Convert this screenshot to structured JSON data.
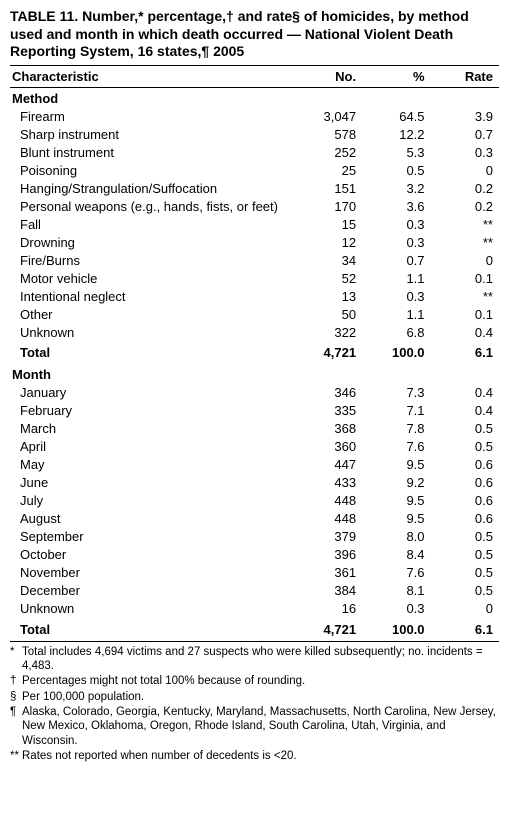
{
  "title": "TABLE 11. Number,* percentage,† and rate§ of homicides, by method used and month in which death occurred — National Violent Death Reporting System, 16 states,¶ 2005",
  "headers": {
    "characteristic": "Characteristic",
    "no": "No.",
    "pct": "%",
    "rate": "Rate"
  },
  "sections": [
    {
      "label": "Method",
      "rows": [
        {
          "label": "Firearm",
          "no": "3,047",
          "pct": "64.5",
          "rate": "3.9"
        },
        {
          "label": "Sharp instrument",
          "no": "578",
          "pct": "12.2",
          "rate": "0.7"
        },
        {
          "label": "Blunt instrument",
          "no": "252",
          "pct": "5.3",
          "rate": "0.3"
        },
        {
          "label": "Poisoning",
          "no": "25",
          "pct": "0.5",
          "rate": "0"
        },
        {
          "label": "Hanging/Strangulation/Suffocation",
          "no": "151",
          "pct": "3.2",
          "rate": "0.2"
        },
        {
          "label": "Personal weapons (e.g., hands, fists, or feet)",
          "no": "170",
          "pct": "3.6",
          "rate": "0.2"
        },
        {
          "label": "Fall",
          "no": "15",
          "pct": "0.3",
          "rate": "**"
        },
        {
          "label": "Drowning",
          "no": "12",
          "pct": "0.3",
          "rate": "**"
        },
        {
          "label": "Fire/Burns",
          "no": "34",
          "pct": "0.7",
          "rate": "0"
        },
        {
          "label": "Motor vehicle",
          "no": "52",
          "pct": "1.1",
          "rate": "0.1"
        },
        {
          "label": "Intentional neglect",
          "no": "13",
          "pct": "0.3",
          "rate": "**"
        },
        {
          "label": "Other",
          "no": "50",
          "pct": "1.1",
          "rate": "0.1"
        },
        {
          "label": "Unknown",
          "no": "322",
          "pct": "6.8",
          "rate": "0.4"
        }
      ],
      "total": {
        "label": "Total",
        "no": "4,721",
        "pct": "100.0",
        "rate": "6.1"
      }
    },
    {
      "label": "Month",
      "rows": [
        {
          "label": "January",
          "no": "346",
          "pct": "7.3",
          "rate": "0.4"
        },
        {
          "label": "February",
          "no": "335",
          "pct": "7.1",
          "rate": "0.4"
        },
        {
          "label": "March",
          "no": "368",
          "pct": "7.8",
          "rate": "0.5"
        },
        {
          "label": "April",
          "no": "360",
          "pct": "7.6",
          "rate": "0.5"
        },
        {
          "label": "May",
          "no": "447",
          "pct": "9.5",
          "rate": "0.6"
        },
        {
          "label": "June",
          "no": "433",
          "pct": "9.2",
          "rate": "0.6"
        },
        {
          "label": "July",
          "no": "448",
          "pct": "9.5",
          "rate": "0.6"
        },
        {
          "label": "August",
          "no": "448",
          "pct": "9.5",
          "rate": "0.6"
        },
        {
          "label": "September",
          "no": "379",
          "pct": "8.0",
          "rate": "0.5"
        },
        {
          "label": "October",
          "no": "396",
          "pct": "8.4",
          "rate": "0.5"
        },
        {
          "label": "November",
          "no": "361",
          "pct": "7.6",
          "rate": "0.5"
        },
        {
          "label": "December",
          "no": "384",
          "pct": "8.1",
          "rate": "0.5"
        },
        {
          "label": "Unknown",
          "no": "16",
          "pct": "0.3",
          "rate": "0"
        }
      ],
      "total": {
        "label": "Total",
        "no": "4,721",
        "pct": "100.0",
        "rate": "6.1"
      }
    }
  ],
  "footnotes": [
    {
      "marker": "*",
      "text": "Total includes 4,694 victims and 27 suspects who were killed subsequently; no. incidents = 4,483."
    },
    {
      "marker": "†",
      "text": "Percentages might not total 100% because of rounding."
    },
    {
      "marker": "§",
      "text": "Per 100,000 population."
    },
    {
      "marker": "¶",
      "text": "Alaska, Colorado, Georgia, Kentucky, Maryland, Massachusetts, North Carolina, New Jersey, New Mexico, Oklahoma, Oregon, Rhode Island, South Carolina, Utah, Virginia, and Wisconsin."
    },
    {
      "marker": "**",
      "text": "Rates not reported when number of decedents is <20."
    }
  ]
}
